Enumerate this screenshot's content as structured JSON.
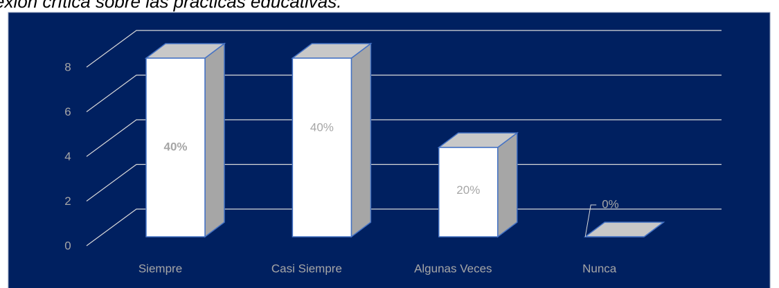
{
  "caption": "exión crítica sobre las prácticas educativas.",
  "chart_data": {
    "type": "bar3d",
    "categories": [
      "Siempre",
      "Casi Siempre",
      "Algunas Veces",
      "Nunca"
    ],
    "values": [
      8,
      8,
      4,
      0
    ],
    "value_labels": [
      "40%",
      "40%",
      "20%",
      "0%"
    ],
    "ylim": [
      0,
      8
    ],
    "yticks": [
      0,
      2,
      4,
      6,
      8
    ],
    "grid": true,
    "color": "#ffffff",
    "background": "#002060"
  }
}
